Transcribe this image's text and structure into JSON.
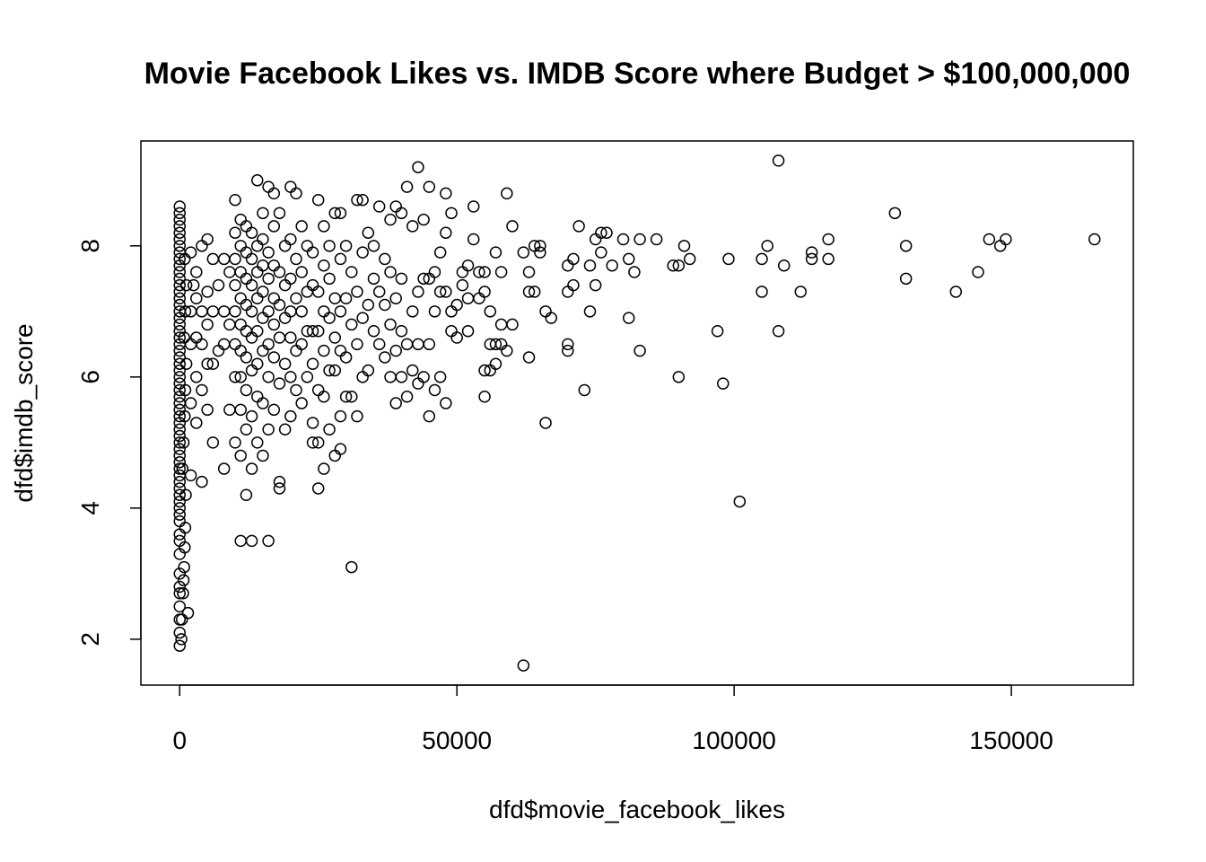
{
  "chart_data": {
    "type": "scatter",
    "title": "Movie Facebook Likes vs. IMDB Score where Budget > $100,000,000",
    "xlabel": "dfd$movie_facebook_likes",
    "ylabel": "dfd$imdb_score",
    "xlim": [
      -7000,
      172000
    ],
    "ylim": [
      1.3,
      9.6
    ],
    "xticks": [
      0,
      50000,
      100000,
      150000
    ],
    "xtick_labels": [
      "0",
      "50000",
      "100000",
      "150000"
    ],
    "yticks": [
      2,
      4,
      6,
      8
    ],
    "ytick_labels": [
      "2",
      "4",
      "6",
      "8"
    ],
    "grid": false,
    "legend": "none",
    "marker": "open-circle",
    "points": [
      [
        0,
        1.9
      ],
      [
        0,
        2.1
      ],
      [
        0,
        2.3
      ],
      [
        0,
        2.5
      ],
      [
        0,
        2.7
      ],
      [
        0,
        2.8
      ],
      [
        0,
        3.0
      ],
      [
        0,
        3.3
      ],
      [
        0,
        3.5
      ],
      [
        0,
        3.6
      ],
      [
        0,
        3.8
      ],
      [
        0,
        3.9
      ],
      [
        0,
        4.0
      ],
      [
        0,
        4.1
      ],
      [
        0,
        4.2
      ],
      [
        0,
        4.3
      ],
      [
        0,
        4.4
      ],
      [
        0,
        4.5
      ],
      [
        0,
        4.6
      ],
      [
        0,
        4.7
      ],
      [
        0,
        4.8
      ],
      [
        0,
        4.9
      ],
      [
        0,
        5.0
      ],
      [
        0,
        5.1
      ],
      [
        0,
        5.2
      ],
      [
        0,
        5.3
      ],
      [
        0,
        5.4
      ],
      [
        0,
        5.5
      ],
      [
        0,
        5.6
      ],
      [
        0,
        5.7
      ],
      [
        0,
        5.8
      ],
      [
        0,
        5.9
      ],
      [
        0,
        6.0
      ],
      [
        0,
        6.1
      ],
      [
        0,
        6.2
      ],
      [
        0,
        6.3
      ],
      [
        0,
        6.4
      ],
      [
        0,
        6.5
      ],
      [
        0,
        6.6
      ],
      [
        0,
        6.7
      ],
      [
        0,
        6.8
      ],
      [
        0,
        6.9
      ],
      [
        0,
        7.0
      ],
      [
        0,
        7.1
      ],
      [
        0,
        7.2
      ],
      [
        0,
        7.3
      ],
      [
        0,
        7.4
      ],
      [
        0,
        7.5
      ],
      [
        0,
        7.6
      ],
      [
        0,
        7.7
      ],
      [
        0,
        7.8
      ],
      [
        0,
        7.9
      ],
      [
        0,
        8.0
      ],
      [
        0,
        8.1
      ],
      [
        0,
        8.2
      ],
      [
        0,
        8.3
      ],
      [
        0,
        8.4
      ],
      [
        0,
        8.5
      ],
      [
        0,
        8.6
      ],
      [
        300,
        2.0
      ],
      [
        400,
        2.3
      ],
      [
        600,
        2.7
      ],
      [
        700,
        2.9
      ],
      [
        800,
        3.1
      ],
      [
        900,
        3.4
      ],
      [
        1000,
        3.7
      ],
      [
        1100,
        4.2
      ],
      [
        500,
        4.6
      ],
      [
        700,
        5.0
      ],
      [
        900,
        5.4
      ],
      [
        1000,
        5.8
      ],
      [
        1200,
        6.2
      ],
      [
        800,
        6.6
      ],
      [
        1000,
        7.0
      ],
      [
        1200,
        7.4
      ],
      [
        900,
        7.8
      ],
      [
        1500,
        2.4
      ],
      [
        2000,
        4.5
      ],
      [
        2000,
        5.6
      ],
      [
        2000,
        6.5
      ],
      [
        2000,
        7.0
      ],
      [
        2500,
        7.4
      ],
      [
        2000,
        7.9
      ],
      [
        3000,
        5.3
      ],
      [
        3000,
        6.0
      ],
      [
        3000,
        6.6
      ],
      [
        3000,
        7.2
      ],
      [
        3000,
        7.6
      ],
      [
        4000,
        4.4
      ],
      [
        4000,
        5.8
      ],
      [
        4000,
        6.5
      ],
      [
        4000,
        7.0
      ],
      [
        4000,
        8.0
      ],
      [
        5000,
        5.5
      ],
      [
        5000,
        6.2
      ],
      [
        5000,
        6.8
      ],
      [
        5000,
        7.3
      ],
      [
        5000,
        8.1
      ],
      [
        6000,
        5.0
      ],
      [
        6000,
        6.2
      ],
      [
        6000,
        7.0
      ],
      [
        6000,
        7.8
      ],
      [
        7000,
        6.4
      ],
      [
        7000,
        7.4
      ],
      [
        8000,
        4.6
      ],
      [
        8000,
        6.5
      ],
      [
        8000,
        7.0
      ],
      [
        8000,
        7.8
      ],
      [
        9000,
        5.5
      ],
      [
        9000,
        6.8
      ],
      [
        9000,
        7.6
      ],
      [
        10000,
        5.0
      ],
      [
        10000,
        6.0
      ],
      [
        10000,
        6.5
      ],
      [
        10000,
        7.0
      ],
      [
        10000,
        7.4
      ],
      [
        10000,
        7.8
      ],
      [
        10000,
        8.2
      ],
      [
        10000,
        8.7
      ],
      [
        11000,
        3.5
      ],
      [
        11000,
        4.8
      ],
      [
        11000,
        5.5
      ],
      [
        11000,
        6.0
      ],
      [
        11000,
        6.4
      ],
      [
        11000,
        6.8
      ],
      [
        11000,
        7.2
      ],
      [
        11000,
        7.6
      ],
      [
        11000,
        8.0
      ],
      [
        11000,
        8.4
      ],
      [
        12000,
        4.2
      ],
      [
        12000,
        5.2
      ],
      [
        12000,
        5.8
      ],
      [
        12000,
        6.3
      ],
      [
        12000,
        6.7
      ],
      [
        12000,
        7.1
      ],
      [
        12000,
        7.5
      ],
      [
        12000,
        7.9
      ],
      [
        12000,
        8.3
      ],
      [
        13000,
        3.5
      ],
      [
        13000,
        4.6
      ],
      [
        13000,
        5.4
      ],
      [
        13000,
        6.1
      ],
      [
        13000,
        6.6
      ],
      [
        13000,
        7.0
      ],
      [
        13000,
        7.4
      ],
      [
        13000,
        7.8
      ],
      [
        13000,
        8.2
      ],
      [
        14000,
        5.0
      ],
      [
        14000,
        5.7
      ],
      [
        14000,
        6.2
      ],
      [
        14000,
        6.7
      ],
      [
        14000,
        7.2
      ],
      [
        14000,
        7.6
      ],
      [
        14000,
        8.0
      ],
      [
        14000,
        9.0
      ],
      [
        15000,
        4.8
      ],
      [
        15000,
        5.6
      ],
      [
        15000,
        6.4
      ],
      [
        15000,
        6.9
      ],
      [
        15000,
        7.3
      ],
      [
        15000,
        7.7
      ],
      [
        15000,
        8.1
      ],
      [
        15000,
        8.5
      ],
      [
        16000,
        3.5
      ],
      [
        16000,
        5.2
      ],
      [
        16000,
        6.0
      ],
      [
        16000,
        6.5
      ],
      [
        16000,
        7.0
      ],
      [
        16000,
        7.5
      ],
      [
        16000,
        7.9
      ],
      [
        16000,
        8.9
      ],
      [
        17000,
        5.5
      ],
      [
        17000,
        6.3
      ],
      [
        17000,
        6.8
      ],
      [
        17000,
        7.2
      ],
      [
        17000,
        7.7
      ],
      [
        17000,
        8.3
      ],
      [
        17000,
        8.8
      ],
      [
        18000,
        4.3
      ],
      [
        18000,
        4.4
      ],
      [
        18000,
        5.9
      ],
      [
        18000,
        6.6
      ],
      [
        18000,
        7.1
      ],
      [
        18000,
        7.6
      ],
      [
        18000,
        8.5
      ],
      [
        19000,
        5.2
      ],
      [
        19000,
        6.2
      ],
      [
        19000,
        6.9
      ],
      [
        19000,
        7.4
      ],
      [
        19000,
        8.0
      ],
      [
        20000,
        5.4
      ],
      [
        20000,
        6.0
      ],
      [
        20000,
        6.6
      ],
      [
        20000,
        7.0
      ],
      [
        20000,
        7.5
      ],
      [
        20000,
        8.1
      ],
      [
        20000,
        8.9
      ],
      [
        21000,
        5.8
      ],
      [
        21000,
        6.4
      ],
      [
        21000,
        7.2
      ],
      [
        21000,
        7.8
      ],
      [
        21000,
        8.8
      ],
      [
        22000,
        5.6
      ],
      [
        22000,
        6.5
      ],
      [
        22000,
        7.0
      ],
      [
        22000,
        7.6
      ],
      [
        22000,
        8.3
      ],
      [
        23000,
        6.0
      ],
      [
        23000,
        6.7
      ],
      [
        23000,
        7.3
      ],
      [
        23000,
        8.0
      ],
      [
        24000,
        5.0
      ],
      [
        24000,
        5.3
      ],
      [
        24000,
        6.2
      ],
      [
        24000,
        6.7
      ],
      [
        24000,
        7.4
      ],
      [
        24000,
        7.9
      ],
      [
        25000,
        4.3
      ],
      [
        25000,
        5.0
      ],
      [
        25000,
        5.8
      ],
      [
        25000,
        6.7
      ],
      [
        25000,
        7.3
      ],
      [
        25000,
        8.7
      ],
      [
        26000,
        4.6
      ],
      [
        26000,
        5.7
      ],
      [
        26000,
        6.4
      ],
      [
        26000,
        7.0
      ],
      [
        26000,
        7.7
      ],
      [
        26000,
        8.3
      ],
      [
        27000,
        5.2
      ],
      [
        27000,
        6.1
      ],
      [
        27000,
        6.9
      ],
      [
        27000,
        7.5
      ],
      [
        27000,
        8.0
      ],
      [
        28000,
        4.8
      ],
      [
        28000,
        6.1
      ],
      [
        28000,
        6.6
      ],
      [
        28000,
        7.2
      ],
      [
        28000,
        8.5
      ],
      [
        29000,
        4.9
      ],
      [
        29000,
        5.4
      ],
      [
        29000,
        6.4
      ],
      [
        29000,
        7.0
      ],
      [
        29000,
        7.8
      ],
      [
        29000,
        8.5
      ],
      [
        30000,
        5.7
      ],
      [
        30000,
        6.3
      ],
      [
        30000,
        7.2
      ],
      [
        30000,
        8.0
      ],
      [
        31000,
        3.1
      ],
      [
        31000,
        5.7
      ],
      [
        31000,
        6.8
      ],
      [
        31000,
        7.6
      ],
      [
        32000,
        5.4
      ],
      [
        32000,
        6.5
      ],
      [
        32000,
        7.3
      ],
      [
        32000,
        8.7
      ],
      [
        33000,
        6.0
      ],
      [
        33000,
        6.9
      ],
      [
        33000,
        7.9
      ],
      [
        33000,
        8.7
      ],
      [
        34000,
        6.1
      ],
      [
        34000,
        7.1
      ],
      [
        34000,
        8.2
      ],
      [
        35000,
        6.7
      ],
      [
        35000,
        7.5
      ],
      [
        35000,
        8.0
      ],
      [
        36000,
        6.5
      ],
      [
        36000,
        7.3
      ],
      [
        36000,
        8.6
      ],
      [
        37000,
        6.3
      ],
      [
        37000,
        7.1
      ],
      [
        37000,
        7.8
      ],
      [
        38000,
        6.0
      ],
      [
        38000,
        6.8
      ],
      [
        38000,
        7.6
      ],
      [
        38000,
        8.4
      ],
      [
        39000,
        5.6
      ],
      [
        39000,
        6.4
      ],
      [
        39000,
        7.2
      ],
      [
        39000,
        8.6
      ],
      [
        40000,
        6.0
      ],
      [
        40000,
        6.7
      ],
      [
        40000,
        7.5
      ],
      [
        40000,
        8.5
      ],
      [
        41000,
        5.7
      ],
      [
        41000,
        6.5
      ],
      [
        41000,
        8.9
      ],
      [
        42000,
        6.1
      ],
      [
        42000,
        7.0
      ],
      [
        42000,
        8.3
      ],
      [
        43000,
        5.9
      ],
      [
        43000,
        6.5
      ],
      [
        43000,
        7.3
      ],
      [
        43000,
        9.2
      ],
      [
        44000,
        6.0
      ],
      [
        44000,
        7.5
      ],
      [
        44000,
        8.4
      ],
      [
        45000,
        5.4
      ],
      [
        45000,
        6.5
      ],
      [
        45000,
        7.5
      ],
      [
        45000,
        8.9
      ],
      [
        46000,
        5.8
      ],
      [
        46000,
        7.0
      ],
      [
        46000,
        7.6
      ],
      [
        47000,
        6.0
      ],
      [
        47000,
        7.3
      ],
      [
        47000,
        7.9
      ],
      [
        48000,
        5.6
      ],
      [
        48000,
        7.3
      ],
      [
        48000,
        8.2
      ],
      [
        48000,
        8.8
      ],
      [
        49000,
        6.7
      ],
      [
        49000,
        7.0
      ],
      [
        49000,
        8.5
      ],
      [
        50000,
        6.6
      ],
      [
        50000,
        7.1
      ],
      [
        51000,
        7.4
      ],
      [
        51000,
        7.6
      ],
      [
        52000,
        6.7
      ],
      [
        52000,
        7.2
      ],
      [
        52000,
        7.7
      ],
      [
        53000,
        8.1
      ],
      [
        53000,
        8.6
      ],
      [
        54000,
        7.2
      ],
      [
        54000,
        7.6
      ],
      [
        55000,
        5.7
      ],
      [
        55000,
        6.1
      ],
      [
        55000,
        7.3
      ],
      [
        55000,
        7.6
      ],
      [
        56000,
        6.1
      ],
      [
        56000,
        6.5
      ],
      [
        56000,
        7.0
      ],
      [
        57000,
        6.2
      ],
      [
        57000,
        6.5
      ],
      [
        57000,
        7.9
      ],
      [
        58000,
        6.5
      ],
      [
        58000,
        6.8
      ],
      [
        58000,
        7.6
      ],
      [
        59000,
        6.4
      ],
      [
        59000,
        8.8
      ],
      [
        60000,
        6.8
      ],
      [
        60000,
        8.3
      ],
      [
        62000,
        1.6
      ],
      [
        62000,
        7.9
      ],
      [
        63000,
        6.3
      ],
      [
        63000,
        7.3
      ],
      [
        63000,
        7.6
      ],
      [
        64000,
        7.3
      ],
      [
        64000,
        8.0
      ],
      [
        65000,
        7.9
      ],
      [
        65000,
        8.0
      ],
      [
        66000,
        5.3
      ],
      [
        66000,
        7.0
      ],
      [
        67000,
        6.9
      ],
      [
        70000,
        6.4
      ],
      [
        70000,
        6.5
      ],
      [
        70000,
        7.3
      ],
      [
        70000,
        7.7
      ],
      [
        71000,
        7.4
      ],
      [
        71000,
        7.8
      ],
      [
        72000,
        8.3
      ],
      [
        73000,
        5.8
      ],
      [
        74000,
        7.0
      ],
      [
        74000,
        7.7
      ],
      [
        75000,
        7.4
      ],
      [
        75000,
        8.1
      ],
      [
        76000,
        7.9
      ],
      [
        76000,
        8.2
      ],
      [
        77000,
        8.2
      ],
      [
        78000,
        7.7
      ],
      [
        80000,
        8.1
      ],
      [
        81000,
        6.9
      ],
      [
        81000,
        7.8
      ],
      [
        82000,
        7.6
      ],
      [
        83000,
        6.4
      ],
      [
        83000,
        8.1
      ],
      [
        86000,
        8.1
      ],
      [
        89000,
        7.7
      ],
      [
        90000,
        6.0
      ],
      [
        90000,
        7.7
      ],
      [
        91000,
        8.0
      ],
      [
        92000,
        7.8
      ],
      [
        97000,
        6.7
      ],
      [
        98000,
        5.9
      ],
      [
        99000,
        7.8
      ],
      [
        101000,
        4.1
      ],
      [
        105000,
        7.3
      ],
      [
        105000,
        7.8
      ],
      [
        106000,
        8.0
      ],
      [
        108000,
        6.7
      ],
      [
        108000,
        9.3
      ],
      [
        109000,
        7.7
      ],
      [
        112000,
        7.3
      ],
      [
        114000,
        7.8
      ],
      [
        114000,
        7.9
      ],
      [
        117000,
        7.8
      ],
      [
        117000,
        8.1
      ],
      [
        129000,
        8.5
      ],
      [
        131000,
        7.5
      ],
      [
        131000,
        8.0
      ],
      [
        140000,
        7.3
      ],
      [
        144000,
        7.6
      ],
      [
        146000,
        8.1
      ],
      [
        148000,
        8.0
      ],
      [
        149000,
        8.1
      ],
      [
        165000,
        8.1
      ]
    ]
  }
}
